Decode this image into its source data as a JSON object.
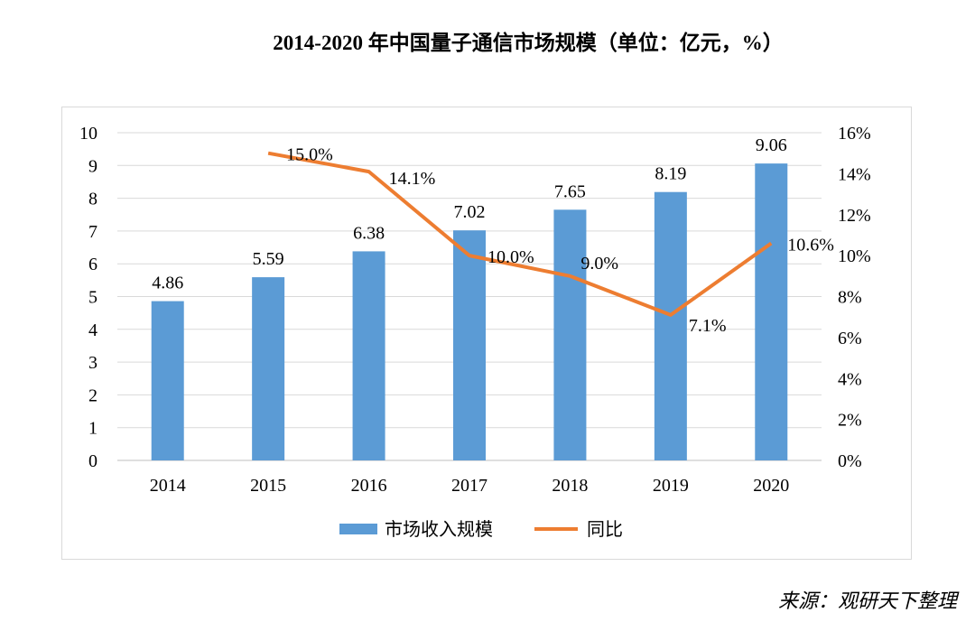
{
  "title": "2014-2020 年中国量子通信市场规模（单位：亿元，%）",
  "source": "来源：观研天下整理",
  "chart_data": {
    "type": "bar+line",
    "categories": [
      "2014",
      "2015",
      "2016",
      "2017",
      "2018",
      "2019",
      "2020"
    ],
    "series": [
      {
        "name": "市场收入规模",
        "type": "bar",
        "axis": "left",
        "color": "#5b9bd5",
        "values": [
          4.86,
          5.59,
          6.38,
          7.02,
          7.65,
          8.19,
          9.06
        ],
        "labels": [
          "4.86",
          "5.59",
          "6.38",
          "7.02",
          "7.65",
          "8.19",
          "9.06"
        ]
      },
      {
        "name": "同比",
        "type": "line",
        "axis": "right",
        "color": "#ed7d31",
        "values": [
          null,
          15.0,
          14.1,
          10.0,
          9.0,
          7.1,
          10.6
        ],
        "labels": [
          "",
          "15.0%",
          "14.1%",
          "10.0%",
          "9.0%",
          "7.1%",
          "10.6%"
        ]
      }
    ],
    "y_left": {
      "range": [
        0,
        10
      ],
      "ticks": [
        "0",
        "1",
        "2",
        "3",
        "4",
        "5",
        "6",
        "7",
        "8",
        "9",
        "10"
      ]
    },
    "y_right": {
      "range": [
        0,
        16
      ],
      "ticks": [
        "0%",
        "2%",
        "4%",
        "6%",
        "8%",
        "10%",
        "12%",
        "14%",
        "16%"
      ]
    },
    "grid": true,
    "legend": "bottom"
  }
}
